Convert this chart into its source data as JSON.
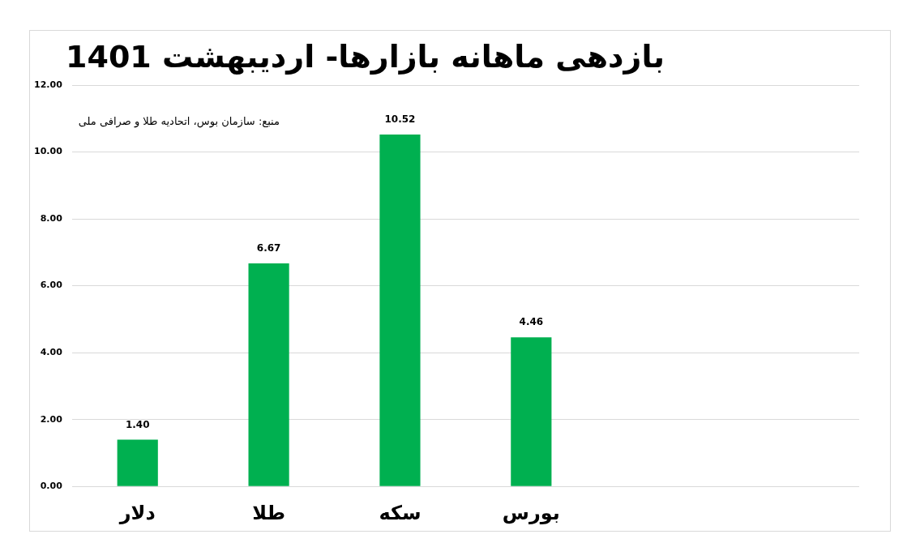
{
  "chart_data": {
    "type": "bar",
    "title": "بازدهی ماهانه بازارها- اردیبهشت 1401",
    "annotations": [
      "منبع:  سازمان بوس، اتحادیه طلا و صرافی ملی"
    ],
    "categories": [
      "دلار",
      "طلا",
      "سکه",
      "بورس",
      null,
      null
    ],
    "values": [
      1.4,
      6.67,
      10.52,
      4.46,
      null,
      null
    ],
    "value_labels": [
      "1.40",
      "6.67",
      "10.52",
      "4.46",
      null,
      null
    ],
    "color": "#00b050",
    "ylim": [
      0,
      12
    ],
    "yticks": [
      {
        "value": 0,
        "label": "0.00"
      },
      {
        "value": 2,
        "label": "2.00"
      },
      {
        "value": 4,
        "label": "4.00"
      },
      {
        "value": 6,
        "label": "6.00"
      },
      {
        "value": 8,
        "label": "8.00"
      },
      {
        "value": 10,
        "label": "10.00"
      },
      {
        "value": 12,
        "label": "12.00"
      }
    ],
    "grid": "y",
    "legend": false
  }
}
